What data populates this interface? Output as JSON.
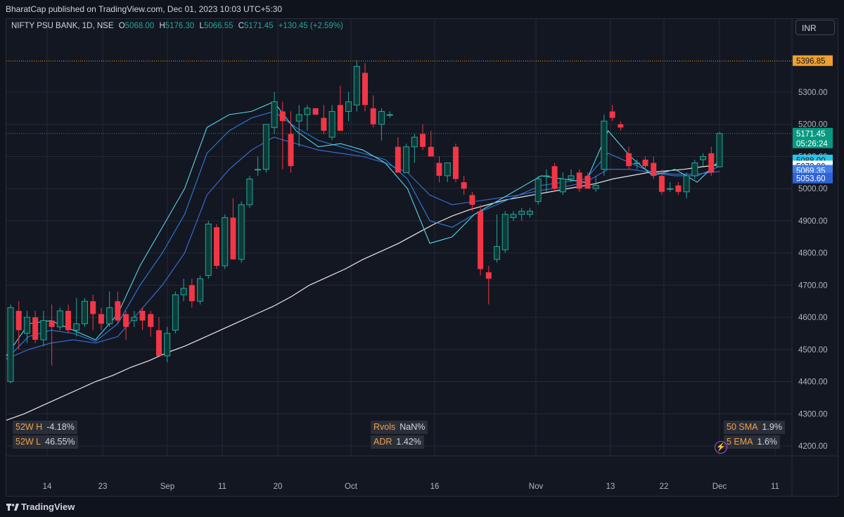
{
  "header": {
    "published": "BharatCap published on TradingView.com, Dec 01, 2023 10:03 UTC+5:30"
  },
  "legend": {
    "symbol": "NIFTY PSU BANK, 1D, NSE",
    "open_label": "O",
    "open": "5068.00",
    "high_label": "H",
    "high": "5176.30",
    "low_label": "L",
    "low": "5066.55",
    "close_label": "C",
    "close": "5171.45",
    "change": "+130.45 (+2.59%)"
  },
  "currency_button": "INR",
  "colors": {
    "up": "#26a69a",
    "down": "#f23645",
    "sma50": "#e8e8e8",
    "ema5": "#5ad4e6",
    "ema10": "#2f7de0",
    "ema20": "#3f6fd8",
    "grid": "#262a35",
    "text": "#b2b5be"
  },
  "price_axis": {
    "ticks": [
      "4200.00",
      "4300.00",
      "4400.00",
      "4500.00",
      "4600.00",
      "4700.00",
      "4800.00",
      "4900.00",
      "5000.00",
      "5100.00",
      "5200.00",
      "5300.00"
    ],
    "labels": [
      {
        "text": "5396.85",
        "bg": "#f0a030",
        "fg": "#131722"
      },
      {
        "text": "5171.45",
        "bg": "#089981",
        "fg": "#ffffff"
      },
      {
        "text": "05:26:24",
        "bg": "#089981",
        "fg": "#ffffff"
      },
      {
        "text": "5088.00",
        "bg": "#22c8ee",
        "fg": "#131722"
      },
      {
        "text": "5073.90",
        "bg": "#ffffff",
        "fg": "#131722"
      },
      {
        "text": "5069.35",
        "bg": "#3f7fe8",
        "fg": "#ffffff"
      },
      {
        "text": "5053.60",
        "bg": "#2e62d6",
        "fg": "#ffffff"
      }
    ]
  },
  "time_axis": {
    "ticks": [
      "14",
      "23",
      "Sep",
      "11",
      "20",
      "Oct",
      "16",
      "Nov",
      "13",
      "22",
      "Dec",
      "11"
    ]
  },
  "stats": {
    "high52w": {
      "label": "52W H",
      "value": "-4.18%"
    },
    "low52w": {
      "label": "52W L",
      "value": "46.55%"
    },
    "rvols": {
      "label": "Rvols",
      "value": "NaN%"
    },
    "adr": {
      "label": "ADR",
      "value": "1.42%"
    },
    "sma50": {
      "label": "50 SMA",
      "value": "1.9%"
    },
    "ema5": {
      "label": "5 EMA",
      "value": "1.6%"
    }
  },
  "footer": {
    "brand": "TradingView"
  },
  "chart_data": {
    "type": "candlestick",
    "symbol": "NIFTY PSU BANK",
    "interval": "1D",
    "ylim": [
      4180,
      5460
    ],
    "reference_lines": [
      5396.85,
      5171.45
    ],
    "candles": [
      {
        "d": "2023-08-07",
        "o": 4400,
        "h": 4640,
        "l": 4395,
        "c": 4630
      },
      {
        "d": "2023-08-08",
        "o": 4620,
        "h": 4650,
        "l": 4500,
        "c": 4560
      },
      {
        "d": "2023-08-09",
        "o": 4550,
        "h": 4620,
        "l": 4520,
        "c": 4600
      },
      {
        "d": "2023-08-10",
        "o": 4600,
        "h": 4620,
        "l": 4520,
        "c": 4530
      },
      {
        "d": "2023-08-11",
        "o": 4530,
        "h": 4620,
        "l": 4510,
        "c": 4590
      },
      {
        "d": "2023-08-14",
        "o": 4590,
        "h": 4640,
        "l": 4450,
        "c": 4570
      },
      {
        "d": "2023-08-16",
        "o": 4570,
        "h": 4630,
        "l": 4560,
        "c": 4620
      },
      {
        "d": "2023-08-17",
        "o": 4620,
        "h": 4640,
        "l": 4550,
        "c": 4560
      },
      {
        "d": "2023-08-18",
        "o": 4560,
        "h": 4660,
        "l": 4540,
        "c": 4580
      },
      {
        "d": "2023-08-21",
        "o": 4580,
        "h": 4660,
        "l": 4570,
        "c": 4650
      },
      {
        "d": "2023-08-22",
        "o": 4650,
        "h": 4670,
        "l": 4560,
        "c": 4610
      },
      {
        "d": "2023-08-23",
        "o": 4610,
        "h": 4630,
        "l": 4560,
        "c": 4580
      },
      {
        "d": "2023-08-24",
        "o": 4580,
        "h": 4680,
        "l": 4570,
        "c": 4630
      },
      {
        "d": "2023-08-25",
        "o": 4650,
        "h": 4680,
        "l": 4580,
        "c": 4590
      },
      {
        "d": "2023-08-28",
        "o": 4610,
        "h": 4620,
        "l": 4530,
        "c": 4570
      },
      {
        "d": "2023-08-29",
        "o": 4590,
        "h": 4620,
        "l": 4570,
        "c": 4600
      },
      {
        "d": "2023-08-30",
        "o": 4620,
        "h": 4630,
        "l": 4560,
        "c": 4590
      },
      {
        "d": "2023-08-31",
        "o": 4610,
        "h": 4620,
        "l": 4540,
        "c": 4570
      },
      {
        "d": "2023-09-01",
        "o": 4560,
        "h": 4600,
        "l": 4480,
        "c": 4480
      },
      {
        "d": "2023-09-04",
        "o": 4480,
        "h": 4570,
        "l": 4460,
        "c": 4550
      },
      {
        "d": "2023-09-05",
        "o": 4560,
        "h": 4680,
        "l": 4550,
        "c": 4670
      },
      {
        "d": "2023-09-06",
        "o": 4670,
        "h": 4720,
        "l": 4650,
        "c": 4690
      },
      {
        "d": "2023-09-07",
        "o": 4700,
        "h": 4720,
        "l": 4630,
        "c": 4650
      },
      {
        "d": "2023-09-08",
        "o": 4650,
        "h": 4730,
        "l": 4640,
        "c": 4720
      },
      {
        "d": "2023-09-11",
        "o": 4730,
        "h": 4900,
        "l": 4720,
        "c": 4890
      },
      {
        "d": "2023-09-12",
        "o": 4880,
        "h": 4890,
        "l": 4750,
        "c": 4760
      },
      {
        "d": "2023-09-13",
        "o": 4760,
        "h": 4920,
        "l": 4750,
        "c": 4910
      },
      {
        "d": "2023-09-14",
        "o": 4910,
        "h": 4970,
        "l": 4780,
        "c": 4780
      },
      {
        "d": "2023-09-15",
        "o": 4780,
        "h": 4960,
        "l": 4770,
        "c": 4950
      },
      {
        "d": "2023-09-18",
        "o": 4950,
        "h": 5040,
        "l": 4940,
        "c": 5030
      },
      {
        "d": "2023-09-20",
        "o": 5060,
        "h": 5100,
        "l": 5040,
        "c": 5060
      },
      {
        "d": "2023-09-21",
        "o": 5060,
        "h": 5200,
        "l": 5050,
        "c": 5200
      },
      {
        "d": "2023-09-22",
        "o": 5190,
        "h": 5300,
        "l": 5170,
        "c": 5270
      },
      {
        "d": "2023-09-25",
        "o": 5240,
        "h": 5270,
        "l": 5060,
        "c": 5210
      },
      {
        "d": "2023-09-26",
        "o": 5170,
        "h": 5240,
        "l": 5050,
        "c": 5070
      },
      {
        "d": "2023-09-27",
        "o": 5210,
        "h": 5260,
        "l": 5130,
        "c": 5230
      },
      {
        "d": "2023-09-28",
        "o": 5230,
        "h": 5260,
        "l": 5180,
        "c": 5250
      },
      {
        "d": "2023-09-29",
        "o": 5250,
        "h": 5250,
        "l": 5240,
        "c": 5230
      },
      {
        "d": "2023-10-03",
        "o": 5220,
        "h": 5260,
        "l": 5170,
        "c": 5180
      },
      {
        "d": "2023-10-04",
        "o": 5160,
        "h": 5260,
        "l": 5150,
        "c": 5240
      },
      {
        "d": "2023-10-05",
        "o": 5260,
        "h": 5320,
        "l": 5180,
        "c": 5180
      },
      {
        "d": "2023-10-06",
        "o": 5240,
        "h": 5300,
        "l": 5210,
        "c": 5270
      },
      {
        "d": "2023-10-09",
        "o": 5260,
        "h": 5400,
        "l": 5240,
        "c": 5380
      },
      {
        "d": "2023-10-10",
        "o": 5360,
        "h": 5390,
        "l": 5240,
        "c": 5260
      },
      {
        "d": "2023-10-11",
        "o": 5250,
        "h": 5290,
        "l": 5190,
        "c": 5200
      },
      {
        "d": "2023-10-12",
        "o": 5200,
        "h": 5250,
        "l": 5150,
        "c": 5240
      },
      {
        "d": "2023-10-13",
        "o": 5230,
        "h": 5240,
        "l": 5220,
        "c": 5230
      },
      {
        "d": "2023-10-16",
        "o": 5130,
        "h": 5160,
        "l": 5050,
        "c": 5050
      },
      {
        "d": "2023-10-17",
        "o": 5050,
        "h": 5140,
        "l": 5050,
        "c": 5130
      },
      {
        "d": "2023-10-18",
        "o": 5130,
        "h": 5170,
        "l": 5080,
        "c": 5160
      },
      {
        "d": "2023-10-19",
        "o": 5170,
        "h": 5200,
        "l": 5120,
        "c": 5130
      },
      {
        "d": "2023-10-20",
        "o": 5130,
        "h": 5180,
        "l": 5100,
        "c": 5100
      },
      {
        "d": "2023-10-23",
        "o": 5080,
        "h": 5100,
        "l": 5020,
        "c": 5040
      },
      {
        "d": "2023-10-25",
        "o": 5040,
        "h": 5080,
        "l": 5020,
        "c": 5080
      },
      {
        "d": "2023-10-26",
        "o": 5130,
        "h": 5140,
        "l": 5020,
        "c": 5030
      },
      {
        "d": "2023-10-27",
        "o": 5020,
        "h": 5040,
        "l": 4980,
        "c": 5000
      },
      {
        "d": "2023-10-30",
        "o": 4980,
        "h": 4990,
        "l": 4930,
        "c": 4950
      },
      {
        "d": "2023-10-31",
        "o": 4930,
        "h": 4950,
        "l": 4730,
        "c": 4750
      },
      {
        "d": "2023-11-01",
        "o": 4740,
        "h": 4760,
        "l": 4640,
        "c": 4720
      },
      {
        "d": "2023-11-02",
        "o": 4780,
        "h": 4920,
        "l": 4770,
        "c": 4820
      },
      {
        "d": "2023-11-03",
        "o": 4810,
        "h": 4930,
        "l": 4800,
        "c": 4920
      },
      {
        "d": "2023-11-06",
        "o": 4910,
        "h": 4930,
        "l": 4900,
        "c": 4920
      },
      {
        "d": "2023-11-07",
        "o": 4920,
        "h": 4940,
        "l": 4900,
        "c": 4930
      },
      {
        "d": "2023-11-08",
        "o": 4920,
        "h": 4940,
        "l": 4910,
        "c": 4930
      },
      {
        "d": "2023-11-09",
        "o": 4960,
        "h": 5040,
        "l": 4950,
        "c": 5030
      },
      {
        "d": "2023-11-10",
        "o": 5040,
        "h": 5060,
        "l": 4990,
        "c": 5040
      },
      {
        "d": "2023-11-13",
        "o": 5070,
        "h": 5080,
        "l": 4990,
        "c": 5000
      },
      {
        "d": "2023-11-15",
        "o": 4990,
        "h": 5050,
        "l": 4980,
        "c": 5030
      },
      {
        "d": "2023-11-16",
        "o": 5030,
        "h": 5060,
        "l": 5020,
        "c": 5040
      },
      {
        "d": "2023-11-17",
        "o": 5050,
        "h": 5060,
        "l": 4990,
        "c": 5000
      },
      {
        "d": "2023-11-20",
        "o": 5040,
        "h": 5050,
        "l": 5000,
        "c": 5000
      },
      {
        "d": "2023-11-21",
        "o": 5000,
        "h": 5040,
        "l": 4990,
        "c": 5010
      },
      {
        "d": "2023-11-22",
        "o": 5060,
        "h": 5230,
        "l": 5040,
        "c": 5210
      },
      {
        "d": "2023-11-23",
        "o": 5240,
        "h": 5260,
        "l": 5210,
        "c": 5220
      },
      {
        "d": "2023-11-24",
        "o": 5200,
        "h": 5210,
        "l": 5180,
        "c": 5190
      },
      {
        "d": "2023-11-27",
        "o": 5110,
        "h": 5130,
        "l": 5060,
        "c": 5070
      },
      {
        "d": "2023-11-28",
        "o": 5080,
        "h": 5090,
        "l": 5060,
        "c": 5080
      },
      {
        "d": "2023-11-29",
        "o": 5090,
        "h": 5100,
        "l": 5060,
        "c": 5070
      },
      {
        "d": "2023-11-30",
        "o": 5080,
        "h": 5100,
        "l": 5030,
        "c": 5040
      },
      {
        "d": "2023-12-01",
        "o": 5040,
        "h": 5060,
        "l": 4980,
        "c": 4990
      },
      {
        "d": "2023-12-04",
        "o": 5000,
        "h": 5020,
        "l": 4990,
        "c": 5000
      },
      {
        "d": "2023-12-05",
        "o": 5010,
        "h": 5020,
        "l": 4980,
        "c": 4990
      },
      {
        "d": "2023-12-06",
        "o": 4990,
        "h": 5050,
        "l": 4970,
        "c": 5040
      },
      {
        "d": "2023-12-07",
        "o": 5040,
        "h": 5090,
        "l": 5030,
        "c": 5080
      },
      {
        "d": "2023-12-08",
        "o": 5090,
        "h": 5110,
        "l": 5070,
        "c": 5100
      },
      {
        "d": "2023-12-11",
        "o": 5110,
        "h": 5130,
        "l": 5040,
        "c": 5050
      },
      {
        "d": "2023-12-12",
        "o": 5068,
        "h": 5176.3,
        "l": 5066.55,
        "c": 5171.45
      }
    ],
    "sma50": [
      4280,
      4300,
      4325,
      4350,
      4375,
      4400,
      4420,
      4445,
      4465,
      4490,
      4510,
      4535,
      4560,
      4585,
      4610,
      4635,
      4665,
      4700,
      4725,
      4750,
      4780,
      4805,
      4830,
      4860,
      4890,
      4915,
      4935,
      4950,
      4965,
      4975,
      4985,
      4995,
      5005,
      5015,
      5030,
      5040,
      5050,
      5055,
      5060,
      5068,
      5073.9
    ],
    "ema5": [
      4480,
      4580,
      4590,
      4560,
      4530,
      4610,
      4760,
      4880,
      5000,
      5190,
      5230,
      5240,
      5270,
      5180,
      5130,
      5140,
      5120,
      5080,
      5000,
      4830,
      4850,
      4920,
      4960,
      5000,
      5040,
      5030,
      5020,
      5180,
      5100,
      5040,
      5060,
      5020,
      5088
    ],
    "ema10": [
      4470,
      4540,
      4560,
      4550,
      4525,
      4580,
      4700,
      4800,
      4920,
      5110,
      5180,
      5220,
      5240,
      5190,
      5150,
      5130,
      5110,
      5090,
      5030,
      4900,
      4880,
      4920,
      4950,
      4980,
      5010,
      5020,
      5030,
      5110,
      5080,
      5050,
      5040,
      5040,
      5069.35
    ],
    "ema20": [
      4470,
      4500,
      4520,
      4530,
      4520,
      4540,
      4620,
      4700,
      4800,
      4980,
      5060,
      5120,
      5160,
      5140,
      5120,
      5110,
      5100,
      5080,
      5050,
      4980,
      4950,
      4960,
      4970,
      4980,
      4995,
      5005,
      5020,
      5060,
      5060,
      5050,
      5045,
      5045,
      5053.6
    ]
  }
}
